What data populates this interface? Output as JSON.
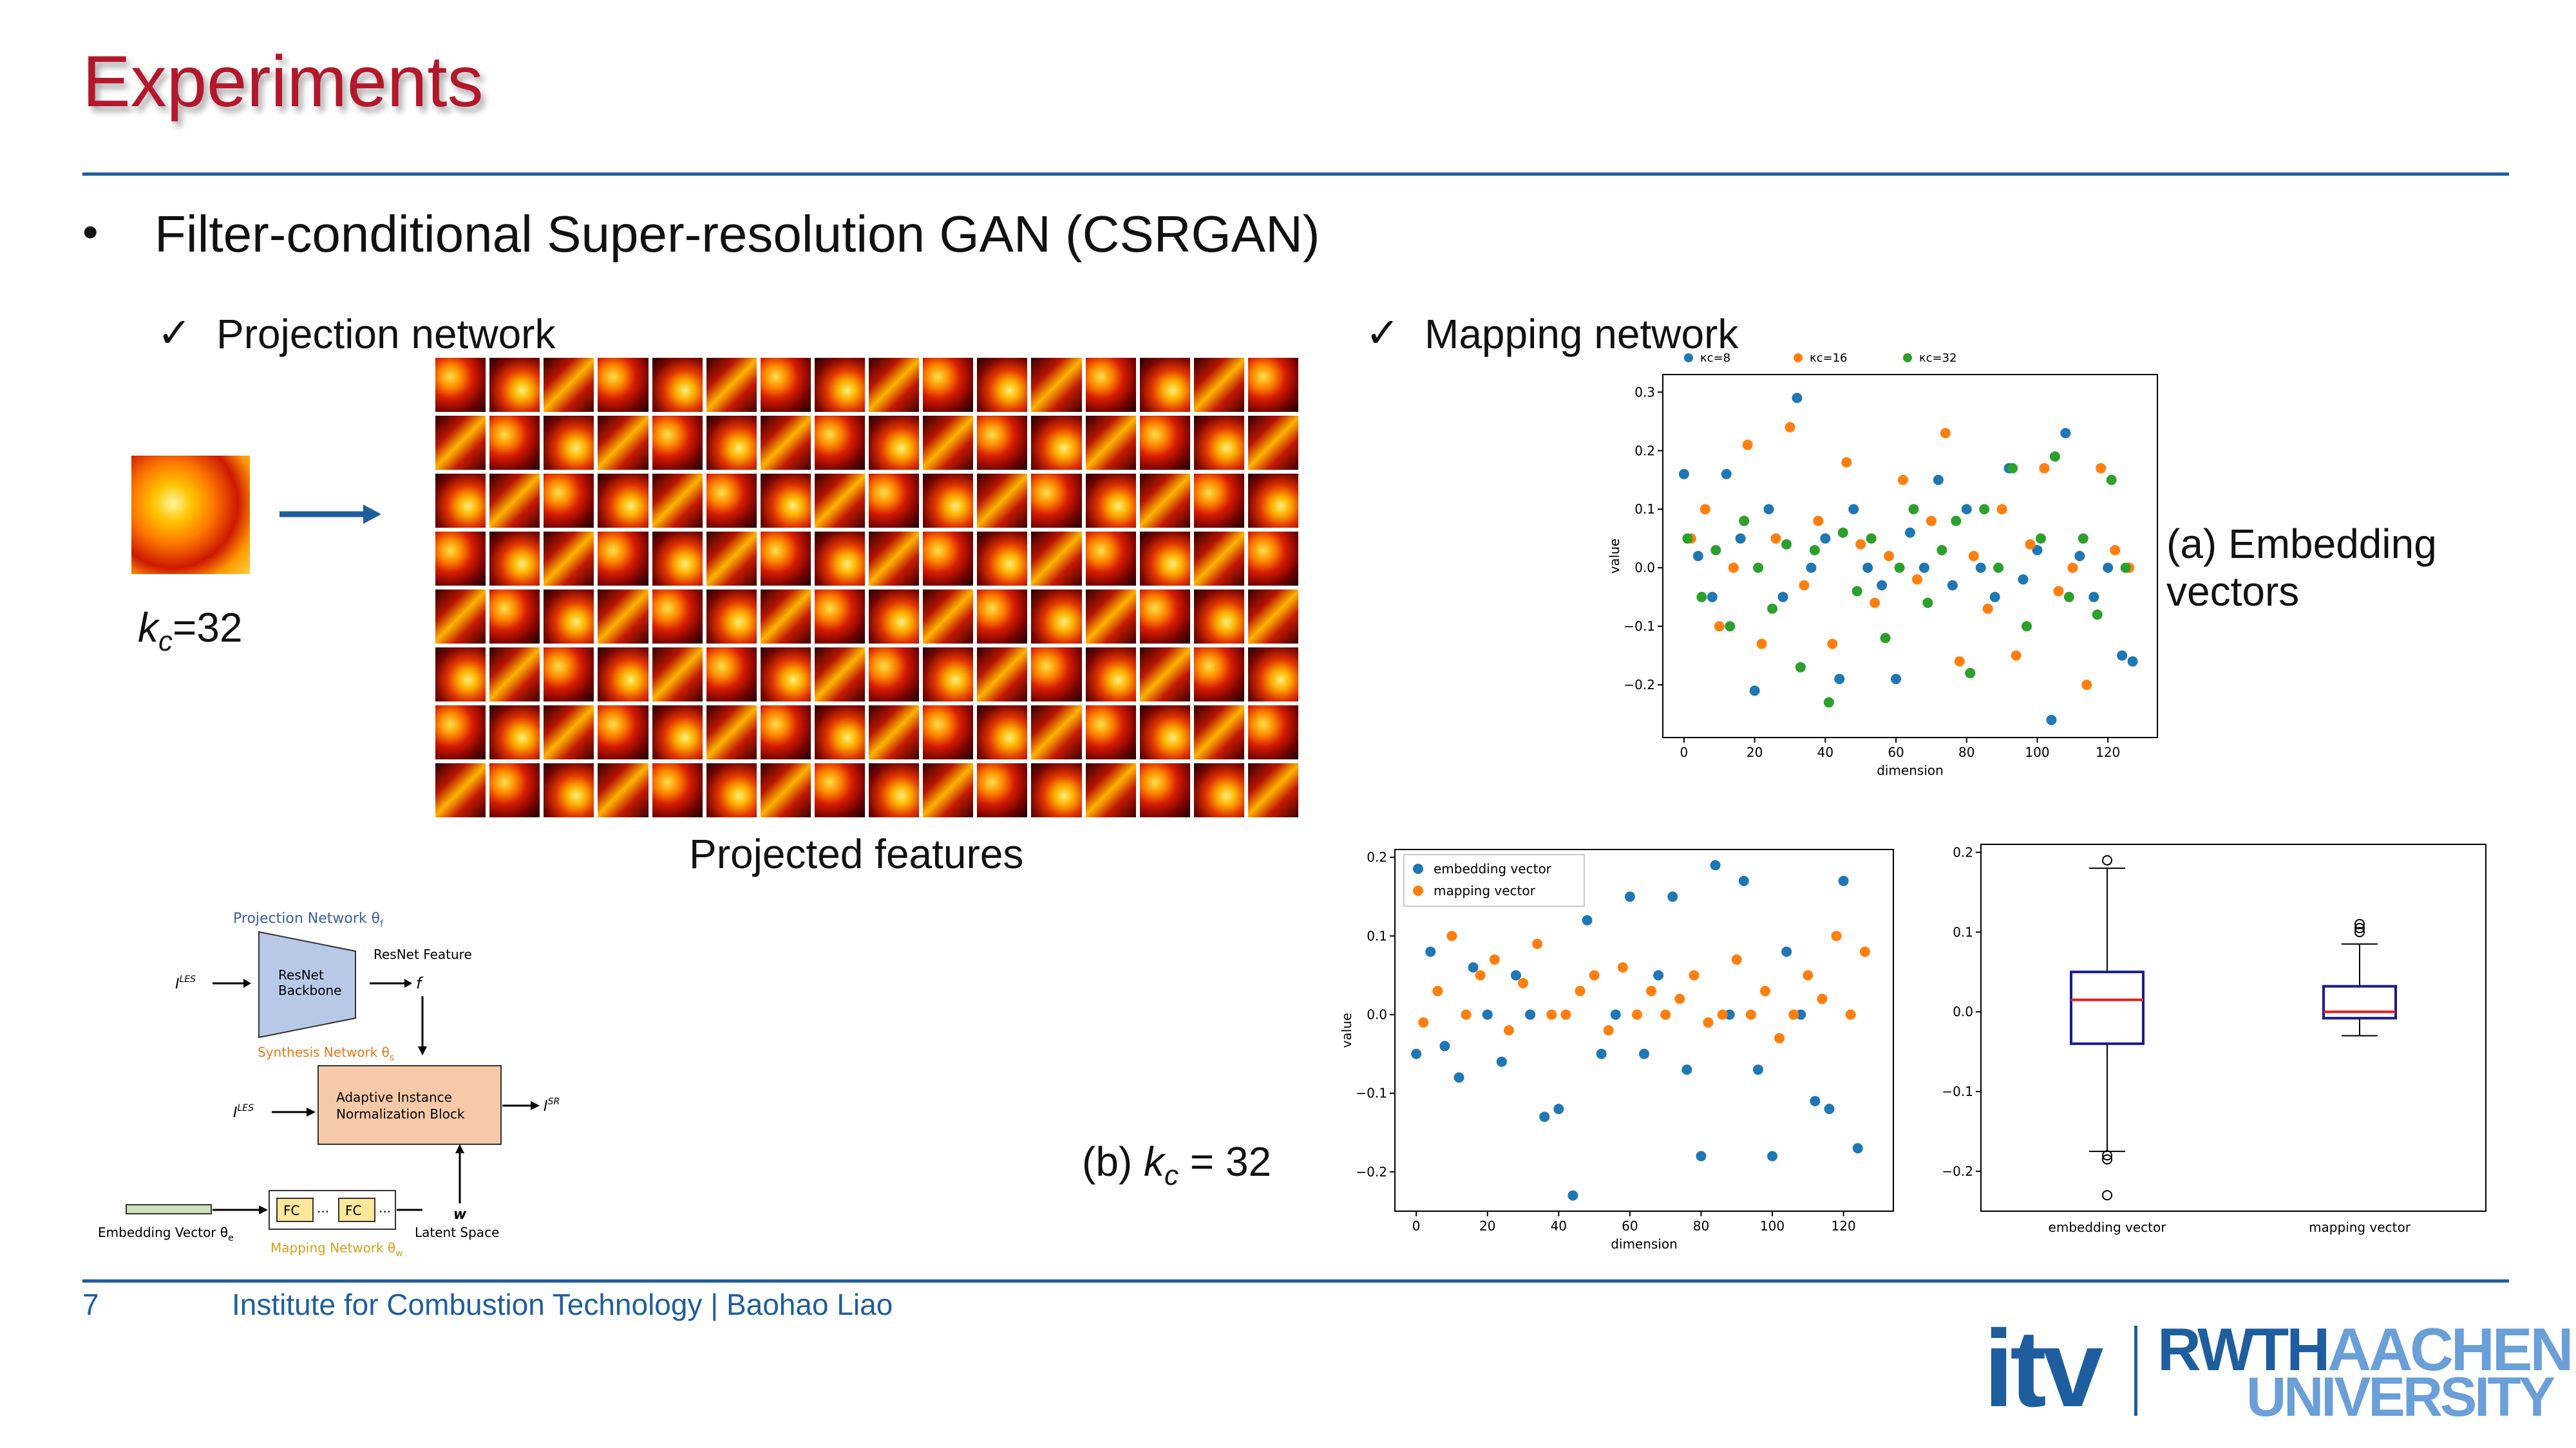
{
  "title": "Experiments",
  "bullet": "Filter-conditional Super-resolution GAN (CSRGAN)",
  "left_section": {
    "check": "✓",
    "label": "Projection network",
    "kc_label": "k",
    "kc_sub": "c",
    "kc_value": "=32",
    "projected_label": "Projected features"
  },
  "right_section": {
    "check": "✓",
    "label": "Mapping network",
    "label_a": "(a) Embedding vectors",
    "label_b_pre": "(b) ",
    "label_b_k": "k",
    "label_b_sub": "c",
    "label_b_post": " = 32"
  },
  "arch": {
    "proj_title": "Projection Network θ",
    "proj_title_sub": "f",
    "resnet_l1": "ResNet",
    "resnet_l2": "Backbone",
    "resnet_feature": "ResNet Feature",
    "f": "f",
    "input1": "I",
    "input1_sup": "LES",
    "synth_title": "Synthesis Network θ",
    "synth_title_sub": "s",
    "ain_l1": "Adaptive Instance",
    "ain_l2": "Normalization Block",
    "input2": "I",
    "input2_sup": "LES",
    "output": "I",
    "output_sup": "SR",
    "fc1": "FC",
    "fc2": "FC",
    "dots": "...",
    "w": "w",
    "latent": "Latent Space",
    "embed": "Embedding Vector θ",
    "embed_sub": "e",
    "mapping_title": "Mapping Network θ",
    "mapping_title_sub": "w"
  },
  "footer": {
    "page": "7",
    "institute": "Institute for Combustion Technology | Baohao Liao",
    "logo_itv": "itv",
    "logo_rwth": "RWTH",
    "logo_aachen": "AACHEN",
    "logo_univ": "UNIVERSITY"
  },
  "colors": {
    "title": "#b3172b",
    "accent_blue": "#1f5e9e",
    "series_blue": "#1f77b4",
    "series_orange": "#ff7f0e",
    "series_green": "#2ca02c",
    "rwth_light": "#6a9fd8"
  },
  "chart_data": [
    {
      "type": "scatter",
      "title": "",
      "xlabel": "dimension",
      "ylabel": "value",
      "xlim": [
        -6,
        134
      ],
      "ylim": [
        -0.29,
        0.33
      ],
      "xticks": [
        0,
        20,
        40,
        60,
        80,
        100,
        120
      ],
      "yticks": [
        -0.2,
        -0.1,
        0.0,
        0.1,
        0.2,
        0.3
      ],
      "legend": "top",
      "series": [
        {
          "name": "κc=8",
          "color": "#1f77b4",
          "x": [
            0,
            4,
            8,
            12,
            16,
            20,
            24,
            28,
            32,
            36,
            40,
            44,
            48,
            52,
            56,
            60,
            64,
            68,
            72,
            76,
            80,
            84,
            88,
            92,
            96,
            100,
            104,
            108,
            112,
            116,
            120,
            124,
            127
          ],
          "y": [
            0.16,
            0.02,
            -0.05,
            0.16,
            0.05,
            -0.21,
            0.1,
            -0.05,
            0.29,
            0.0,
            0.05,
            -0.19,
            0.1,
            0.0,
            -0.03,
            -0.19,
            0.06,
            0.0,
            0.15,
            -0.03,
            0.1,
            0.0,
            -0.05,
            0.17,
            -0.02,
            0.03,
            -0.26,
            0.23,
            0.02,
            -0.05,
            0.0,
            -0.15,
            -0.16
          ]
        },
        {
          "name": "κc=16",
          "color": "#ff7f0e",
          "x": [
            2,
            6,
            10,
            14,
            18,
            22,
            26,
            30,
            34,
            38,
            42,
            46,
            50,
            54,
            58,
            62,
            66,
            70,
            74,
            78,
            82,
            86,
            90,
            94,
            98,
            102,
            106,
            110,
            114,
            118,
            122,
            126
          ],
          "y": [
            0.05,
            0.1,
            -0.1,
            0.0,
            0.21,
            -0.13,
            0.05,
            0.24,
            -0.03,
            0.08,
            -0.13,
            0.18,
            0.04,
            -0.06,
            0.02,
            0.15,
            -0.02,
            0.08,
            0.23,
            -0.16,
            0.02,
            -0.07,
            0.1,
            -0.15,
            0.04,
            0.17,
            -0.04,
            0.0,
            -0.2,
            0.17,
            0.03,
            0.0
          ]
        },
        {
          "name": "κc=32",
          "color": "#2ca02c",
          "x": [
            1,
            5,
            9,
            13,
            17,
            21,
            25,
            29,
            33,
            37,
            41,
            45,
            49,
            53,
            57,
            61,
            65,
            69,
            73,
            77,
            81,
            85,
            89,
            93,
            97,
            101,
            105,
            109,
            113,
            117,
            121,
            125
          ],
          "y": [
            0.05,
            -0.05,
            0.03,
            -0.1,
            0.08,
            0.0,
            -0.07,
            0.04,
            -0.17,
            0.03,
            -0.23,
            0.06,
            -0.04,
            0.05,
            -0.12,
            0.0,
            0.1,
            -0.06,
            0.03,
            0.08,
            -0.18,
            0.1,
            0.0,
            0.17,
            -0.1,
            0.05,
            0.19,
            -0.05,
            0.05,
            -0.08,
            0.15,
            0.0
          ]
        }
      ]
    },
    {
      "type": "scatter",
      "title": "",
      "xlabel": "dimension",
      "ylabel": "value",
      "xlim": [
        -6,
        134
      ],
      "ylim": [
        -0.25,
        0.21
      ],
      "xticks": [
        0,
        20,
        40,
        60,
        80,
        100,
        120
      ],
      "yticks": [
        -0.2,
        -0.1,
        0.0,
        0.1,
        0.2
      ],
      "legend": "top-left",
      "series": [
        {
          "name": "embedding vector",
          "color": "#1f77b4",
          "x": [
            0,
            4,
            8,
            12,
            16,
            20,
            24,
            28,
            32,
            36,
            40,
            44,
            48,
            52,
            56,
            60,
            64,
            68,
            72,
            76,
            80,
            84,
            88,
            92,
            96,
            100,
            104,
            108,
            112,
            116,
            120,
            124
          ],
          "y": [
            -0.05,
            0.08,
            -0.04,
            -0.08,
            0.06,
            0.0,
            -0.06,
            0.05,
            0.0,
            -0.13,
            -0.12,
            -0.23,
            0.12,
            -0.05,
            0.0,
            0.15,
            -0.05,
            0.05,
            0.15,
            -0.07,
            -0.18,
            0.19,
            0.0,
            0.17,
            -0.07,
            -0.18,
            0.08,
            0.0,
            -0.11,
            -0.12,
            0.17,
            -0.17
          ]
        },
        {
          "name": "mapping vector",
          "color": "#ff7f0e",
          "x": [
            2,
            6,
            10,
            14,
            18,
            22,
            26,
            30,
            34,
            38,
            42,
            46,
            50,
            54,
            58,
            62,
            66,
            70,
            74,
            78,
            82,
            86,
            90,
            94,
            98,
            102,
            106,
            110,
            114,
            118,
            122,
            126
          ],
          "y": [
            -0.01,
            0.03,
            0.1,
            0.0,
            0.05,
            0.07,
            -0.02,
            0.04,
            0.09,
            0.0,
            0.0,
            0.03,
            0.05,
            -0.02,
            0.06,
            0.0,
            0.03,
            0.0,
            0.02,
            0.05,
            -0.01,
            0.0,
            0.07,
            0.0,
            0.03,
            -0.03,
            0.0,
            0.05,
            0.02,
            0.1,
            0.0,
            0.08
          ]
        }
      ]
    },
    {
      "type": "box",
      "title": "",
      "categories": [
        "embedding vector",
        "mapping vector"
      ],
      "ylim": [
        -0.25,
        0.21
      ],
      "yticks": [
        -0.2,
        -0.1,
        0.0,
        0.1,
        0.2
      ],
      "boxes": [
        {
          "min": -0.175,
          "q1": -0.04,
          "median": 0.015,
          "q3": 0.05,
          "max": 0.18,
          "outliers": [
            0.19,
            -0.18,
            -0.185,
            -0.23
          ]
        },
        {
          "min": -0.03,
          "q1": -0.008,
          "median": 0.0,
          "q3": 0.032,
          "max": 0.085,
          "outliers": [
            0.1,
            0.105,
            0.11
          ]
        }
      ]
    }
  ]
}
